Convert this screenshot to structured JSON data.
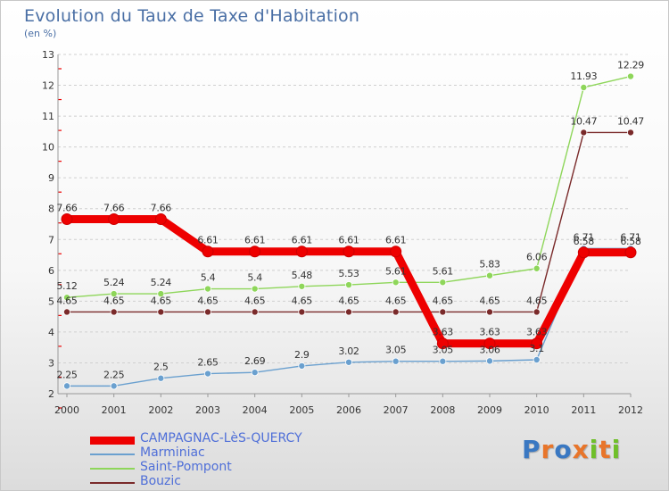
{
  "header": {
    "title": "Evolution du Taux de Taxe d'Habitation",
    "subtitle": "(en %)"
  },
  "brand": {
    "text": "Proxiti",
    "colors": [
      "#3a78c2",
      "#e8752a",
      "#3a78c2",
      "#e8752a",
      "#6fbf2a",
      "#e8752a",
      "#6fbf2a"
    ]
  },
  "chart_data": {
    "type": "line",
    "x": [
      2000,
      2001,
      2002,
      2003,
      2004,
      2005,
      2006,
      2007,
      2008,
      2009,
      2010,
      2011,
      2012
    ],
    "ylim": [
      2,
      13
    ],
    "yticks": [
      2,
      3,
      4,
      5,
      6,
      7,
      8,
      9,
      10,
      11,
      12,
      13
    ],
    "grid": "horizontal dashed",
    "legend_position": "bottom-left",
    "series": [
      {
        "name": "CAMPAGNAC-LèS-QUERCY",
        "color": "#ee0000",
        "bold": true,
        "values": [
          7.66,
          7.66,
          7.66,
          6.61,
          6.61,
          6.61,
          6.61,
          6.61,
          3.63,
          3.63,
          3.63,
          6.58,
          6.58
        ],
        "labels": [
          "7.66",
          "7.66",
          "7.66",
          "6.61",
          "6.61",
          "6.61",
          "6.61",
          "6.61",
          "3.63",
          "3.63",
          "3.63",
          "6.58",
          "6.58"
        ]
      },
      {
        "name": "Marminiac",
        "color": "#6aa0cf",
        "bold": false,
        "values": [
          2.25,
          2.25,
          2.5,
          2.65,
          2.69,
          2.9,
          3.02,
          3.05,
          3.05,
          3.06,
          3.1,
          6.71,
          6.71
        ],
        "labels": [
          "2.25",
          "2.25",
          "2.5",
          "2.65",
          "2.69",
          "2.9",
          "3.02",
          "3.05",
          "3.05",
          "3.06",
          "3.1",
          "6.71",
          "6.71"
        ]
      },
      {
        "name": "Saint-Pompont",
        "color": "#8ed65a",
        "bold": false,
        "values": [
          5.12,
          5.24,
          5.24,
          5.4,
          5.4,
          5.48,
          5.53,
          5.61,
          5.61,
          5.83,
          6.06,
          11.93,
          12.29
        ],
        "labels": [
          "5.12",
          "5.24",
          "5.24",
          "5.4",
          "5.4",
          "5.48",
          "5.53",
          "5.61",
          "5.61",
          "5.83",
          "6.06",
          "11.93",
          "12.29"
        ]
      },
      {
        "name": "Bouzic",
        "color": "#7a2a2a",
        "bold": false,
        "values": [
          4.65,
          4.65,
          4.65,
          4.65,
          4.65,
          4.65,
          4.65,
          4.65,
          4.65,
          4.65,
          4.65,
          10.47,
          10.47
        ],
        "labels": [
          "4.65",
          "4.65",
          "4.65",
          "4.65",
          "4.65",
          "4.65",
          "4.65",
          "4.65",
          "4.65",
          "4.65",
          "4.65",
          "10.47",
          "10.47"
        ]
      }
    ]
  }
}
